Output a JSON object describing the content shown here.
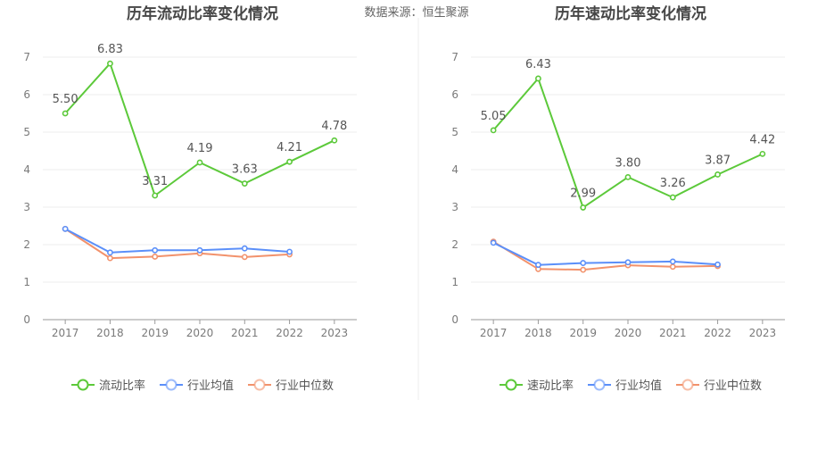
{
  "source": "数据来源：恒生聚源",
  "colors": {
    "main": "#5cc93a",
    "avg": "#5b8ff9",
    "median": "#f2926c",
    "grid": "#ececec",
    "axis": "#9a9a9a"
  },
  "chart_data": [
    {
      "type": "line",
      "title": "历年流动比率变化情况",
      "categories": [
        "2017",
        "2018",
        "2019",
        "2020",
        "2021",
        "2022",
        "2023"
      ],
      "ylim": [
        0,
        7
      ],
      "yticks": [
        "0",
        "1",
        "2",
        "3",
        "4",
        "5",
        "6",
        "7"
      ],
      "grid": true,
      "legend_position": "bottom",
      "series": [
        {
          "name": "流动比率",
          "color": "#5cc93a",
          "values": [
            5.5,
            6.83,
            3.31,
            4.19,
            3.63,
            4.21,
            4.78
          ],
          "labels": [
            "5.50",
            "6.83",
            "3.31",
            "4.19",
            "3.63",
            "4.21",
            "4.78"
          ]
        },
        {
          "name": "行业均值",
          "color": "#5b8ff9",
          "values": [
            2.42,
            1.79,
            1.85,
            1.85,
            1.9,
            1.81,
            null
          ]
        },
        {
          "name": "行业中位数",
          "color": "#f2926c",
          "values": [
            2.42,
            1.64,
            1.68,
            1.77,
            1.67,
            1.74,
            null
          ]
        }
      ]
    },
    {
      "type": "line",
      "title": "历年速动比率变化情况",
      "categories": [
        "2017",
        "2018",
        "2019",
        "2020",
        "2021",
        "2022",
        "2023"
      ],
      "ylim": [
        0,
        7
      ],
      "yticks": [
        "0",
        "1",
        "2",
        "3",
        "4",
        "5",
        "6",
        "7"
      ],
      "grid": true,
      "legend_position": "bottom",
      "series": [
        {
          "name": "速动比率",
          "color": "#5cc93a",
          "values": [
            5.05,
            6.43,
            2.99,
            3.8,
            3.26,
            3.87,
            4.42
          ],
          "labels": [
            "5.05",
            "6.43",
            "2.99",
            "3.80",
            "3.26",
            "3.87",
            "4.42"
          ]
        },
        {
          "name": "行业均值",
          "color": "#5b8ff9",
          "values": [
            2.05,
            1.46,
            1.51,
            1.53,
            1.55,
            1.47,
            null
          ]
        },
        {
          "name": "行业中位数",
          "color": "#f2926c",
          "values": [
            2.08,
            1.35,
            1.33,
            1.45,
            1.41,
            1.43,
            null
          ]
        }
      ]
    }
  ]
}
